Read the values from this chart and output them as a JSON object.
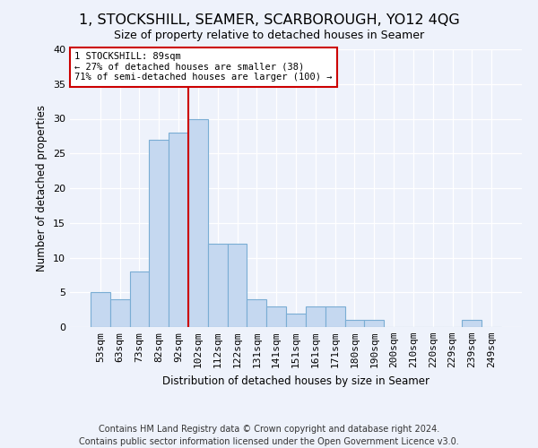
{
  "title": "1, STOCKSHILL, SEAMER, SCARBOROUGH, YO12 4QG",
  "subtitle": "Size of property relative to detached houses in Seamer",
  "xlabel": "Distribution of detached houses by size in Seamer",
  "ylabel": "Number of detached properties",
  "footer_line1": "Contains HM Land Registry data © Crown copyright and database right 2024.",
  "footer_line2": "Contains public sector information licensed under the Open Government Licence v3.0.",
  "bar_labels": [
    "53sqm",
    "63sqm",
    "73sqm",
    "82sqm",
    "92sqm",
    "102sqm",
    "112sqm",
    "122sqm",
    "131sqm",
    "141sqm",
    "151sqm",
    "161sqm",
    "171sqm",
    "180sqm",
    "190sqm",
    "200sqm",
    "210sqm",
    "220sqm",
    "229sqm",
    "239sqm",
    "249sqm"
  ],
  "bar_values": [
    5,
    4,
    8,
    27,
    28,
    30,
    12,
    12,
    4,
    3,
    2,
    3,
    3,
    1,
    1,
    0,
    0,
    0,
    0,
    1,
    0
  ],
  "bar_color": "#c5d8f0",
  "bar_edgecolor": "#7aadd4",
  "background_color": "#eef2fb",
  "grid_color": "#ffffff",
  "annotation_line1": "1 STOCKSHILL: 89sqm",
  "annotation_line2": "← 27% of detached houses are smaller (38)",
  "annotation_line3": "71% of semi-detached houses are larger (100) →",
  "annotation_box_facecolor": "#ffffff",
  "annotation_box_edgecolor": "#cc0000",
  "red_line_bar_index": 4,
  "ylim": [
    0,
    40
  ],
  "yticks": [
    0,
    5,
    10,
    15,
    20,
    25,
    30,
    35,
    40
  ],
  "title_fontsize": 11.5,
  "label_fontsize": 8.5,
  "tick_fontsize": 8,
  "annotation_fontsize": 7.5,
  "footer_fontsize": 7
}
